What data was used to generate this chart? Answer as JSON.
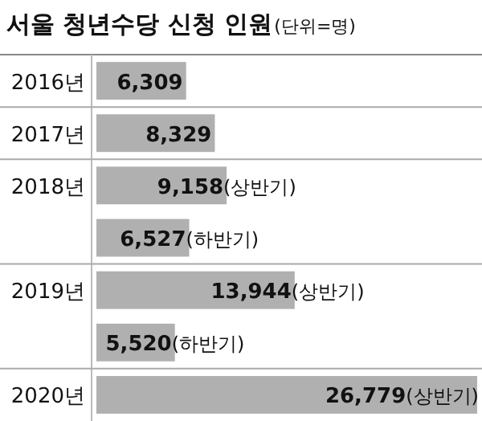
{
  "chart_data": {
    "type": "bar",
    "orientation": "horizontal",
    "title": "서울 청년수당 신청 인원",
    "subtitle": "(단위=명)",
    "categories": [
      "2016년",
      "2017년",
      "2018년",
      null,
      "2019년",
      null,
      "2020년"
    ],
    "values": [
      6309,
      8329,
      9158,
      6527,
      13944,
      5520,
      26779
    ],
    "color": "#b0b0b0",
    "value_labels": [
      "6,309",
      "8,329",
      "9,158(상반기)",
      "6,527(하반기)",
      "13,944(상반기)",
      "5,520(하반기)",
      "26,779(상반기)"
    ]
  }
}
